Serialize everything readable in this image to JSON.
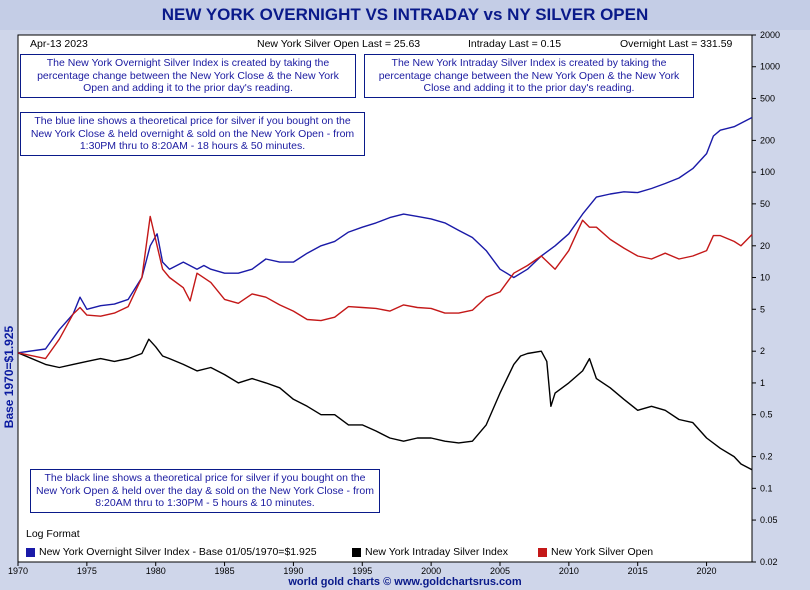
{
  "header": {
    "title": "NEW YORK OVERNIGHT VS INTRADAY vs NY SILVER OPEN",
    "date": "Apr-13  2023",
    "open_last": "New York Silver Open Last = 25.63",
    "intraday_last": "Intraday Last = 0.15",
    "overnight_last": "Overnight Last = 331.59"
  },
  "notes": {
    "overnight_index": "The New York Overnight Silver Index is created by taking the percentage change between the New York Close & the New York Open and adding it to the prior day's reading.",
    "intraday_index": "The New York Intraday Silver Index is created by taking the percentage change between the New York Open & the New York Close and adding it to the prior day's reading.",
    "blue_line": "The blue line shows a theoretical price for silver if you bought on the New York Close & held overnight & sold on the New York Open - from 1:30PM thru to 8:20AM - 18 hours & 50 minutes.",
    "black_line": "The black line shows a theoretical price for silver if you bought on the New York Open & held over the day & sold on the New York Close - from 8:20AM thru to 1:30PM - 5 hours & 10 minutes."
  },
  "log_format": "Log Format",
  "footer": "world gold charts © www.goldchartsrus.com",
  "chart_data": {
    "type": "line",
    "ylabel": "Base 1970=$1.925",
    "yscale": "log",
    "ylim": [
      0.02,
      2000
    ],
    "xlim": [
      1970,
      2023.3
    ],
    "x_ticks": [
      "1970",
      "1975",
      "1980",
      "1985",
      "1990",
      "1995",
      "2000",
      "2005",
      "2010",
      "2015",
      "2020"
    ],
    "y_ticks": [
      "2000",
      "1000",
      "500",
      "200",
      "100",
      "50",
      "20",
      "10",
      "5",
      "2",
      "1",
      "0.5",
      "0.2",
      "0.1",
      "0.05",
      "0.02"
    ],
    "series": [
      {
        "name": "New York Overnight Silver Index - Base 01/05/1970=$1.925",
        "color": "#1a1aa8",
        "x": [
          1970,
          1972,
          1973,
          1974,
          1974.5,
          1975,
          1976,
          1977,
          1978,
          1979,
          1979.6,
          1980.1,
          1980.5,
          1981,
          1982,
          1983,
          1983.5,
          1984,
          1985,
          1986,
          1987,
          1988,
          1989,
          1990,
          1991,
          1992,
          1993,
          1994,
          1995,
          1996,
          1997,
          1998,
          1999,
          2000,
          2001,
          2002,
          2003,
          2004,
          2005,
          2006,
          2007,
          2008,
          2009,
          2010,
          2011,
          2012,
          2013,
          2014,
          2015,
          2016,
          2017,
          2018,
          2019,
          2020,
          2020.5,
          2021,
          2022,
          2023.3
        ],
        "values": [
          1.93,
          2.1,
          3.2,
          4.5,
          6.5,
          5,
          5.4,
          5.6,
          6.2,
          10,
          20,
          26,
          14,
          12,
          14,
          12,
          13,
          12,
          11,
          11,
          12,
          15,
          14,
          14,
          17,
          20,
          22,
          27,
          30,
          33,
          37,
          40,
          38,
          36,
          33,
          28,
          24,
          18,
          12,
          10,
          12,
          16,
          20,
          26,
          40,
          58,
          62,
          65,
          64,
          70,
          78,
          88,
          108,
          150,
          220,
          250,
          270,
          330
        ]
      },
      {
        "name": "New York Intraday Silver Index",
        "color": "#000000",
        "x": [
          1970,
          1972,
          1973,
          1974,
          1975,
          1976,
          1977,
          1978,
          1979,
          1979.5,
          1980,
          1980.5,
          1981,
          1982,
          1983,
          1984,
          1985,
          1986,
          1987,
          1988,
          1989,
          1990,
          1991,
          1992,
          1993,
          1994,
          1995,
          1996,
          1997,
          1998,
          1999,
          2000,
          2001,
          2002,
          2003,
          2004,
          2005,
          2006,
          2006.5,
          2007,
          2008,
          2008.4,
          2008.7,
          2009,
          2010,
          2011,
          2011.5,
          2012,
          2013,
          2014,
          2015,
          2016,
          2017,
          2018,
          2019,
          2020,
          2021,
          2022,
          2022.5,
          2023.3
        ],
        "values": [
          1.93,
          1.5,
          1.4,
          1.5,
          1.6,
          1.7,
          1.6,
          1.7,
          1.9,
          2.6,
          2.2,
          1.8,
          1.7,
          1.5,
          1.3,
          1.4,
          1.2,
          1.0,
          1.1,
          1.0,
          0.9,
          0.7,
          0.6,
          0.5,
          0.5,
          0.4,
          0.4,
          0.35,
          0.3,
          0.28,
          0.3,
          0.3,
          0.28,
          0.27,
          0.28,
          0.4,
          0.8,
          1.5,
          1.8,
          1.9,
          2.0,
          1.6,
          0.6,
          0.8,
          1.0,
          1.3,
          1.7,
          1.1,
          0.9,
          0.7,
          0.55,
          0.6,
          0.55,
          0.45,
          0.42,
          0.3,
          0.24,
          0.2,
          0.17,
          0.15
        ]
      },
      {
        "name": "New York Silver Open",
        "color": "#c41818",
        "x": [
          1970,
          1972,
          1973,
          1974,
          1974.5,
          1975,
          1976,
          1977,
          1978,
          1979,
          1979.6,
          1980.1,
          1980.5,
          1981,
          1982,
          1982.5,
          1983,
          1984,
          1985,
          1986,
          1987,
          1988,
          1989,
          1990,
          1991,
          1992,
          1993,
          1994,
          1995,
          1996,
          1997,
          1998,
          1999,
          2000,
          2001,
          2002,
          2003,
          2004,
          2005,
          2006,
          2007,
          2008,
          2009,
          2010,
          2011,
          2011.5,
          2012,
          2013,
          2014,
          2015,
          2016,
          2017,
          2018,
          2019,
          2020,
          2020.5,
          2021,
          2022,
          2022.5,
          2023.3
        ],
        "values": [
          1.93,
          1.7,
          2.6,
          4.5,
          5.2,
          4.4,
          4.3,
          4.6,
          5.3,
          10,
          38,
          20,
          12,
          10,
          8,
          6,
          11,
          9,
          6.2,
          5.7,
          7,
          6.5,
          5.5,
          4.8,
          4,
          3.9,
          4.2,
          5.3,
          5.2,
          5.1,
          4.8,
          5.5,
          5.2,
          5.1,
          4.6,
          4.6,
          4.9,
          6.5,
          7.3,
          11,
          13,
          16,
          12,
          18,
          35,
          30,
          30,
          23,
          19,
          16,
          15,
          17,
          15,
          16,
          18,
          25,
          25,
          22,
          20,
          25.6
        ]
      }
    ]
  }
}
